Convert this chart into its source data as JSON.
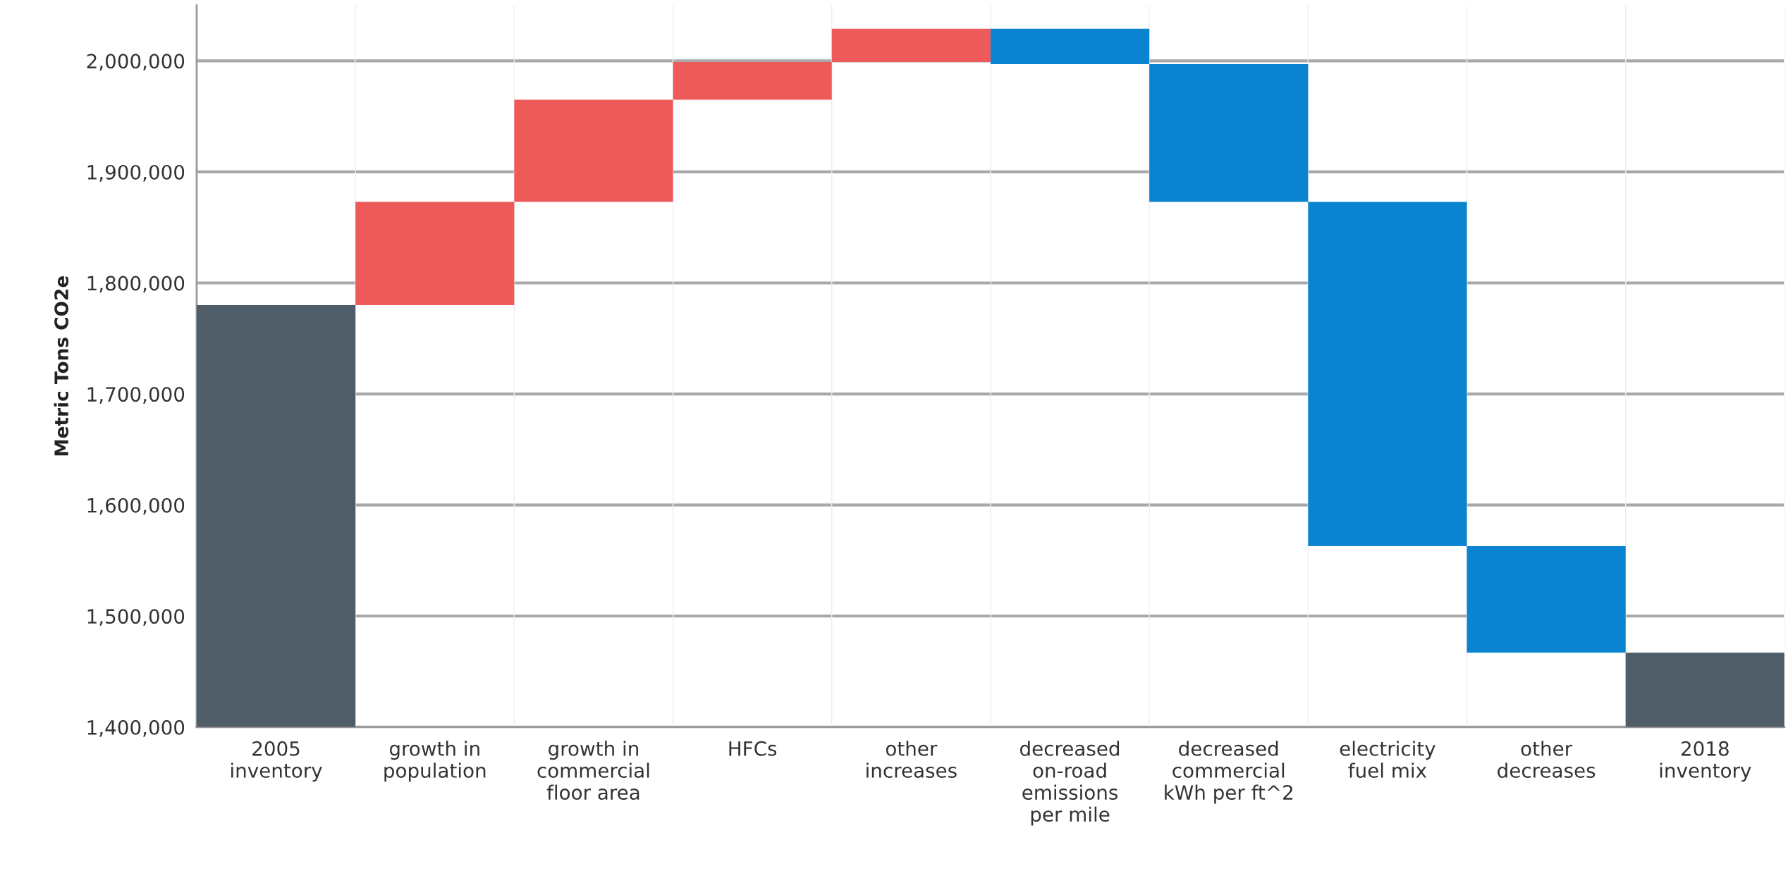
{
  "chart_data": {
    "type": "bar",
    "ylabel": "Metric Tons CO2e",
    "categories": [
      "2005\ninventory",
      "growth in\npopulation",
      "growth in\ncommercial\nfloor area",
      "HFCs",
      "other\nincreases",
      "decreased\non-road\nemissions\nper mile",
      "decreased\ncommercial\nkWh per ft^2",
      "electricity\nfuel mix",
      "other\ndecreases",
      "2018\ninventory"
    ],
    "base": [
      1400000,
      1780000,
      1873000,
      1965000,
      1999000,
      2029000,
      1997000,
      1873000,
      1563000,
      1400000
    ],
    "values": [
      380000,
      93000,
      92000,
      34000,
      30000,
      -32000,
      -124000,
      -310000,
      -96000,
      67000
    ],
    "colors": [
      "#4f5d69",
      "#ee5a5a",
      "#ee5a5a",
      "#ee5a5a",
      "#ee5a5a",
      "#0a84d0",
      "#0a84d0",
      "#0a84d0",
      "#0a84d0",
      "#4f5d69"
    ],
    "ylim": [
      1400000,
      2050000
    ],
    "yticks": [
      {
        "value": 1400000,
        "label": "1,400,000"
      },
      {
        "value": 1500000,
        "label": "1,500,000"
      },
      {
        "value": 1600000,
        "label": "1,600,000"
      },
      {
        "value": 1700000,
        "label": "1,700,000"
      },
      {
        "value": 1800000,
        "label": "1,800,000"
      },
      {
        "value": 1900000,
        "label": "1,900,000"
      },
      {
        "value": 2000000,
        "label": "2,000,000"
      }
    ],
    "grid": "y",
    "legend": false
  }
}
